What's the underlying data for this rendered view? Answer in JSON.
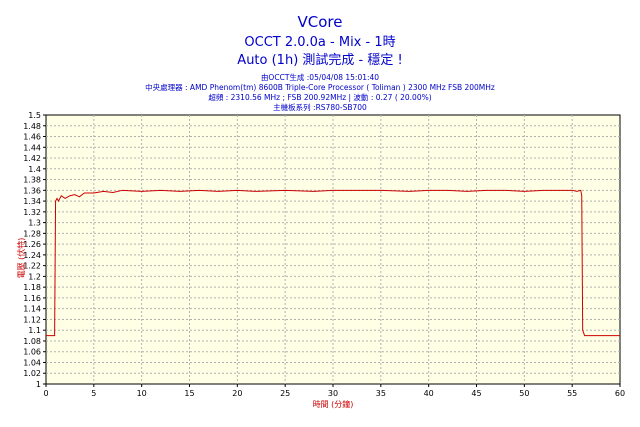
{
  "header": {
    "title": "VCore",
    "subtitle": "OCCT 2.0.0a - Mix - 1時",
    "subtitle2": "Auto (1h) 測試完成 - 穩定 !"
  },
  "meta": {
    "line1": "由OCCT生成 :05/04/08 15:01:40",
    "line2": "中央處理器 : AMD Phenom(tm) 8600B Triple-Core Processor ( Toliman ) 2300 MHz FSB 200MHz",
    "line3": "超頻 : 2310.56 MHz ; FSB 200.92MHz | 波動 : 0.27 ( 20.00%)",
    "line4": "主機板系列 :RS780-SB700"
  },
  "colors": {
    "plot_bg": "#ffffe6",
    "grid": "#b0b0b0",
    "line": "#cc0000",
    "text": "#0000cc"
  },
  "chart_data": {
    "type": "line",
    "title": "VCore",
    "xlabel": "時間 (分鐘)",
    "ylabel": "電壓 (伏特)",
    "xlim": [
      0,
      60
    ],
    "ylim": [
      1,
      1.5
    ],
    "x_ticks": [
      0,
      5,
      10,
      15,
      20,
      25,
      30,
      35,
      40,
      45,
      50,
      55,
      60
    ],
    "y_ticks": [
      "1",
      "1.02",
      "1.04",
      "1.06",
      "1.08",
      "1.1",
      "1.12",
      "1.14",
      "1.16",
      "1.18",
      "1.2",
      "1.22",
      "1.24",
      "1.26",
      "1.28",
      "1.3",
      "1.32",
      "1.34",
      "1.36",
      "1.38",
      "1.4",
      "1.42",
      "1.44",
      "1.46",
      "1.48",
      "1.5"
    ],
    "grid": true,
    "series": [
      {
        "x": [
          0,
          0.5,
          0.9,
          1.0,
          1.15,
          1.3,
          1.6,
          2.0,
          2.5,
          3.0,
          3.5,
          4.0,
          5.0,
          6.0,
          7.0,
          8.0,
          10.0,
          12.0,
          14.0,
          16.0,
          18.0,
          20.0,
          22.0,
          25.0,
          28.0,
          30.0,
          32.0,
          35.0,
          38.0,
          40.0,
          42.0,
          44.0,
          46.0,
          48.0,
          50.0,
          52.0,
          54.0,
          55.0,
          55.5,
          55.9,
          56.0,
          56.1,
          56.3,
          56.6,
          57.0,
          58.0,
          59.0,
          60.0
        ],
        "values": [
          1.09,
          1.09,
          1.09,
          1.34,
          1.345,
          1.34,
          1.35,
          1.345,
          1.35,
          1.352,
          1.348,
          1.355,
          1.355,
          1.358,
          1.356,
          1.36,
          1.358,
          1.36,
          1.358,
          1.36,
          1.358,
          1.36,
          1.358,
          1.36,
          1.358,
          1.36,
          1.36,
          1.36,
          1.358,
          1.36,
          1.36,
          1.358,
          1.36,
          1.36,
          1.358,
          1.36,
          1.36,
          1.36,
          1.358,
          1.36,
          1.35,
          1.1,
          1.09,
          1.09,
          1.09,
          1.09,
          1.09,
          1.09
        ]
      }
    ]
  }
}
